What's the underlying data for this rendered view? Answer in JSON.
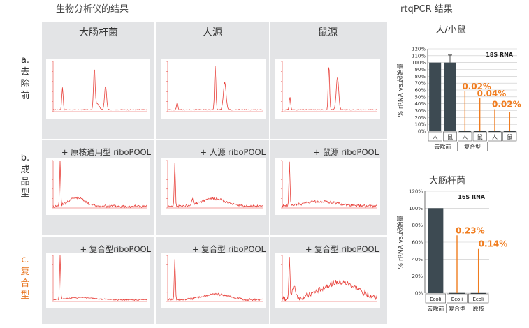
{
  "header": {
    "left_title": "生物分析仪的结果",
    "right_title": "rtqPCR 结果"
  },
  "columns": [
    "大肠杆菌",
    "人源",
    "鼠源"
  ],
  "rows": [
    {
      "label_prefix": "a.",
      "label_chars": [
        "去",
        "除",
        "前"
      ],
      "highlight": false,
      "subtitles": [
        "",
        "",
        ""
      ]
    },
    {
      "label_prefix": "b.",
      "label_chars": [
        "成",
        "品",
        "型"
      ],
      "highlight": false,
      "subtitles": [
        "+ 原核通用型 riboPOOL",
        "+ 人源 riboPOOL",
        "+ 鼠源 riboPOOL"
      ]
    },
    {
      "label_prefix": "c.",
      "label_chars": [
        "复",
        "合",
        "型"
      ],
      "highlight": true,
      "subtitles": [
        "+ 复合型riboPOOL",
        "+ 复合型 riboPOOL",
        "+ 复合型 riboPOOL"
      ]
    }
  ],
  "colors": {
    "trace": "#e8403a",
    "panel": "#e3e4e6",
    "bar_dark": "#3d4a52",
    "accent": "#f07c1e"
  },
  "chart_data": [
    {
      "type": "bar",
      "title": "人/小鼠",
      "annotation": "18S RNA",
      "ylabel": "% rRNA vs.起始量",
      "ylim": [
        0,
        120
      ],
      "yticks": [
        "0%",
        "10%",
        "20%",
        "30%",
        "40%",
        "50%",
        "60%",
        "70%",
        "80%",
        "90%",
        "100%",
        "110%",
        "120%"
      ],
      "categories": [
        "人",
        "鼠",
        "人",
        "鼠",
        "人",
        "鼠"
      ],
      "group_labels": [
        "去除前",
        "复合型",
        "",
        ""
      ],
      "values": [
        100,
        100,
        0.02,
        0.04,
        0.02,
        0.02
      ],
      "value_labels": [
        "",
        "",
        "0.02%",
        "0.04%",
        "0.02%",
        ""
      ]
    },
    {
      "type": "bar",
      "title": "大肠杆菌",
      "annotation": "16S RNA",
      "ylabel": "% rRNA vs.起始量",
      "ylim": [
        0,
        120
      ],
      "yticks": [
        "0%",
        "20%",
        "40%",
        "60%",
        "80%",
        "100%",
        "120%"
      ],
      "categories": [
        "Ecoli",
        "Ecoli",
        "Ecoli"
      ],
      "group_labels": [
        "去除前",
        "复合型",
        "原核"
      ],
      "values": [
        100,
        0.23,
        0.14
      ],
      "value_labels": [
        "",
        "0.23%",
        "0.14%"
      ]
    }
  ]
}
